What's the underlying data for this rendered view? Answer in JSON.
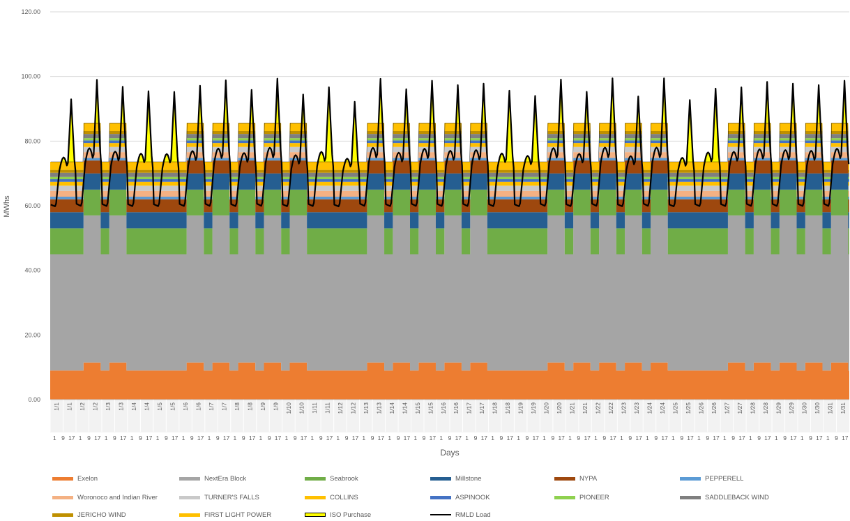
{
  "chart_data": {
    "type": "area",
    "ylabel": "MWhs",
    "xlabel": "Days",
    "ylim": [
      0,
      120
    ],
    "yticks": [
      "0.00",
      "20.00",
      "40.00",
      "60.00",
      "80.00",
      "100.00",
      "120.00"
    ],
    "grid": true,
    "legend_position": "bottom",
    "days": 31,
    "hours_per_day": 24,
    "x_tick_labels_days": [
      "1/1",
      "1/1",
      "1/2",
      "1/2",
      "1/3",
      "1/3",
      "1/4",
      "1/4",
      "1/5",
      "1/5",
      "1/6",
      "1/6",
      "1/7",
      "1/7",
      "1/8",
      "1/8",
      "1/9",
      "1/9",
      "1/10",
      "1/10",
      "1/11",
      "1/11",
      "1/12",
      "1/12",
      "1/13",
      "1/13",
      "1/14",
      "1/14",
      "1/15",
      "1/15",
      "1/16",
      "1/16",
      "1/17",
      "1/17",
      "1/18",
      "1/18",
      "1/19",
      "1/19",
      "1/20",
      "1/20",
      "1/21",
      "1/21",
      "1/22",
      "1/22",
      "1/23",
      "1/23",
      "1/24",
      "1/24",
      "1/25",
      "1/25",
      "1/26",
      "1/26",
      "1/27",
      "1/27",
      "1/28",
      "1/28",
      "1/29",
      "1/29",
      "1/30",
      "1/30",
      "1/31",
      "1/31"
    ],
    "x_tick_labels_hours": [
      "1",
      "9",
      "17"
    ],
    "weekend_days": [
      1,
      4,
      5,
      11,
      12,
      18,
      19,
      25,
      26
    ],
    "series": [
      {
        "name": "Exelon",
        "color": "#ED7D31",
        "offpeak_mw": 9,
        "onpeak_mw": 11.5
      },
      {
        "name": "NextEra Block",
        "color": "#A5A5A5",
        "offpeak_mw": 36,
        "onpeak_mw": 45.5
      },
      {
        "name": "Seabrook",
        "color": "#70AD47",
        "offpeak_mw": 8,
        "onpeak_mw": 8
      },
      {
        "name": "Millstone",
        "color": "#255E91",
        "offpeak_mw": 5,
        "onpeak_mw": 5
      },
      {
        "name": "NYPA",
        "color": "#9E480E",
        "offpeak_mw": 4,
        "onpeak_mw": 4
      },
      {
        "name": "PEPPERELL",
        "color": "#5B9BD5",
        "offpeak_mw": 0.8,
        "onpeak_mw": 0.8
      },
      {
        "name": "Woronoco and Indian River",
        "color": "#F4B183",
        "offpeak_mw": 1.8,
        "onpeak_mw": 1.8
      },
      {
        "name": "TURNER'S FALLS",
        "color": "#C9C9C9",
        "offpeak_mw": 1.6,
        "onpeak_mw": 1.6
      },
      {
        "name": "COLLINS",
        "color": "#FFC000",
        "offpeak_mw": 1.2,
        "onpeak_mw": 1.2
      },
      {
        "name": "ASPINOOK",
        "color": "#4472C4",
        "offpeak_mw": 0.8,
        "onpeak_mw": 0.8
      },
      {
        "name": "PIONEER",
        "color": "#8FD14F",
        "offpeak_mw": 0.7,
        "onpeak_mw": 0.7
      },
      {
        "name": "SADDLEBACK WIND",
        "color": "#7F7F7F",
        "offpeak_mw": 1.3,
        "onpeak_mw": 1.3
      },
      {
        "name": "JERICHO WIND",
        "color": "#BF9000",
        "offpeak_mw": 0.9,
        "onpeak_mw": 0.9
      },
      {
        "name": "FIRST LIGHT POWER",
        "color": "#FFC000",
        "offpeak_mw": 2.5,
        "onpeak_mw": 2.5
      },
      {
        "name": "ISO Purchase",
        "color": "#FFFF00",
        "edge_color": "#000000",
        "note": "fills between supply stack and RMLD Load"
      },
      {
        "name": "RMLD Load",
        "color": "#000000",
        "type": "line",
        "min_mw": 59,
        "peak_mw": 99.5
      }
    ],
    "legend": [
      {
        "name": "Exelon",
        "color": "#ED7D31",
        "style": "area"
      },
      {
        "name": "NextEra Block",
        "color": "#A5A5A5",
        "style": "area"
      },
      {
        "name": "Seabrook",
        "color": "#70AD47",
        "style": "area"
      },
      {
        "name": "Millstone",
        "color": "#255E91",
        "style": "area"
      },
      {
        "name": "NYPA",
        "color": "#9E480E",
        "style": "area"
      },
      {
        "name": "PEPPERELL",
        "color": "#5B9BD5",
        "style": "area"
      },
      {
        "name": "Woronoco and Indian River",
        "color": "#F4B183",
        "style": "area"
      },
      {
        "name": "TURNER'S FALLS",
        "color": "#C9C9C9",
        "style": "area"
      },
      {
        "name": "COLLINS",
        "color": "#FFC000",
        "style": "area"
      },
      {
        "name": "ASPINOOK",
        "color": "#4472C4",
        "style": "area"
      },
      {
        "name": "PIONEER",
        "color": "#8FD14F",
        "style": "area"
      },
      {
        "name": "SADDLEBACK WIND",
        "color": "#7F7F7F",
        "style": "area"
      },
      {
        "name": "JERICHO WIND",
        "color": "#BF9000",
        "style": "area"
      },
      {
        "name": "FIRST LIGHT POWER",
        "color": "#FFC000",
        "style": "area"
      },
      {
        "name": "ISO Purchase",
        "color": "#FFFF00",
        "style": "outlined"
      },
      {
        "name": "RMLD Load",
        "color": "#000000",
        "style": "line"
      }
    ]
  }
}
